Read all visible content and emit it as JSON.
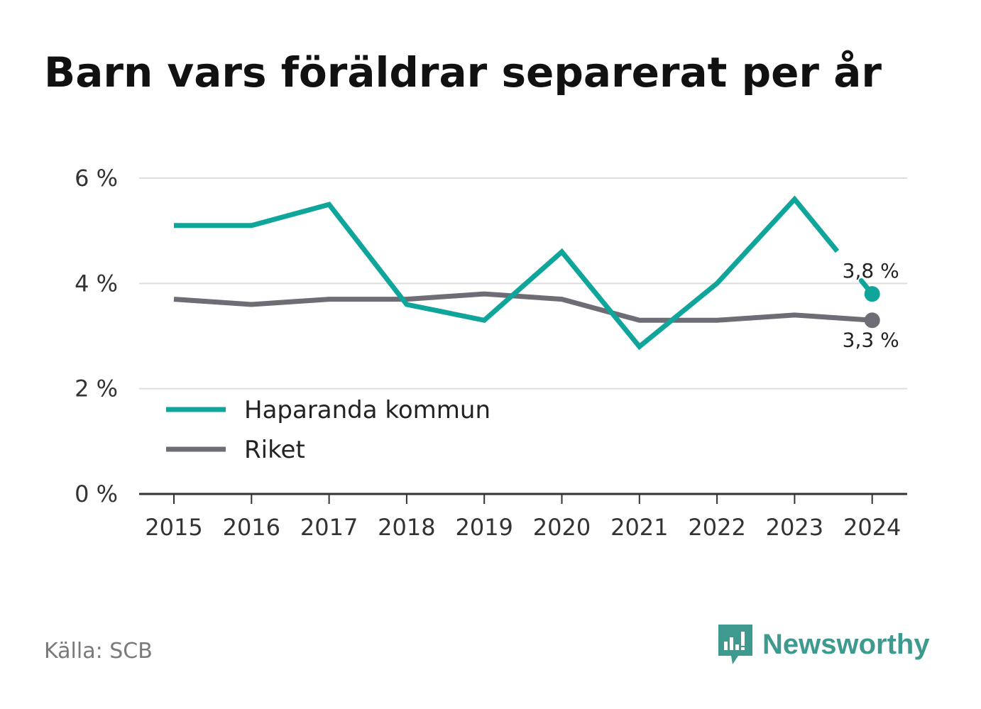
{
  "title": "Barn vars föräldrar separerat per år",
  "source": "Källa: SCB",
  "brand": {
    "name": "Newsworthy",
    "logo_icon": "newsworthy-logo-icon",
    "color": "#3e9a8f"
  },
  "colors": {
    "haparanda": "#0fa59b",
    "riket": "#6e6d75",
    "grid": "#dddddd",
    "axis": "#333333"
  },
  "chart_data": {
    "type": "line",
    "title": "Barn vars föräldrar separerat per år",
    "x": [
      "2015",
      "2016",
      "2017",
      "2018",
      "2019",
      "2020",
      "2021",
      "2022",
      "2023",
      "2024"
    ],
    "y_ticks": [
      "0 %",
      "2 %",
      "4 %",
      "6 %"
    ],
    "y_tick_values": [
      0,
      2,
      4,
      6
    ],
    "ylim": [
      0,
      6
    ],
    "unit": "%",
    "grid": true,
    "legend_position": "bottom-left",
    "series": [
      {
        "name": "Haparanda kommun",
        "color": "#0fa59b",
        "values": [
          5.1,
          5.1,
          5.5,
          3.6,
          3.3,
          4.6,
          2.8,
          4.0,
          5.6,
          3.8
        ],
        "end_label": "3,8 %"
      },
      {
        "name": "Riket",
        "color": "#6e6d75",
        "values": [
          3.7,
          3.6,
          3.7,
          3.7,
          3.8,
          3.7,
          3.3,
          3.3,
          3.4,
          3.3
        ],
        "end_label": "3,3 %"
      }
    ]
  }
}
